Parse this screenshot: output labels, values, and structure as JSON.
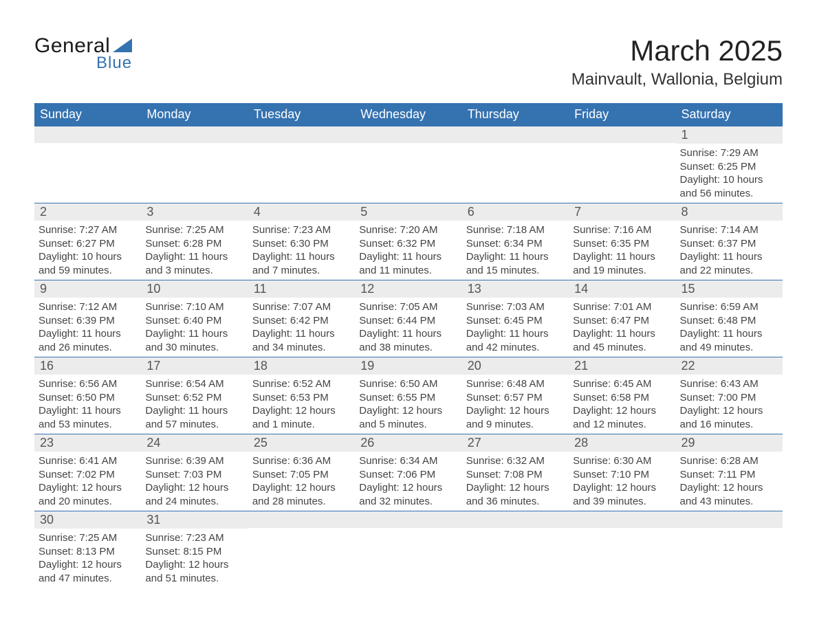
{
  "logo": {
    "text1": "General",
    "text2": "Blue",
    "triangle_color": "#3572b0"
  },
  "title": "March 2025",
  "location": "Mainvault, Wallonia, Belgium",
  "colors": {
    "header_bg": "#3572b0",
    "row_bg": "#ececec",
    "border": "#3572b0"
  },
  "day_headers": [
    "Sunday",
    "Monday",
    "Tuesday",
    "Wednesday",
    "Thursday",
    "Friday",
    "Saturday"
  ],
  "weeks": [
    [
      null,
      null,
      null,
      null,
      null,
      null,
      {
        "n": "1",
        "sunrise": "Sunrise: 7:29 AM",
        "sunset": "Sunset: 6:25 PM",
        "daylight": "Daylight: 10 hours and 56 minutes."
      }
    ],
    [
      {
        "n": "2",
        "sunrise": "Sunrise: 7:27 AM",
        "sunset": "Sunset: 6:27 PM",
        "daylight": "Daylight: 10 hours and 59 minutes."
      },
      {
        "n": "3",
        "sunrise": "Sunrise: 7:25 AM",
        "sunset": "Sunset: 6:28 PM",
        "daylight": "Daylight: 11 hours and 3 minutes."
      },
      {
        "n": "4",
        "sunrise": "Sunrise: 7:23 AM",
        "sunset": "Sunset: 6:30 PM",
        "daylight": "Daylight: 11 hours and 7 minutes."
      },
      {
        "n": "5",
        "sunrise": "Sunrise: 7:20 AM",
        "sunset": "Sunset: 6:32 PM",
        "daylight": "Daylight: 11 hours and 11 minutes."
      },
      {
        "n": "6",
        "sunrise": "Sunrise: 7:18 AM",
        "sunset": "Sunset: 6:34 PM",
        "daylight": "Daylight: 11 hours and 15 minutes."
      },
      {
        "n": "7",
        "sunrise": "Sunrise: 7:16 AM",
        "sunset": "Sunset: 6:35 PM",
        "daylight": "Daylight: 11 hours and 19 minutes."
      },
      {
        "n": "8",
        "sunrise": "Sunrise: 7:14 AM",
        "sunset": "Sunset: 6:37 PM",
        "daylight": "Daylight: 11 hours and 22 minutes."
      }
    ],
    [
      {
        "n": "9",
        "sunrise": "Sunrise: 7:12 AM",
        "sunset": "Sunset: 6:39 PM",
        "daylight": "Daylight: 11 hours and 26 minutes."
      },
      {
        "n": "10",
        "sunrise": "Sunrise: 7:10 AM",
        "sunset": "Sunset: 6:40 PM",
        "daylight": "Daylight: 11 hours and 30 minutes."
      },
      {
        "n": "11",
        "sunrise": "Sunrise: 7:07 AM",
        "sunset": "Sunset: 6:42 PM",
        "daylight": "Daylight: 11 hours and 34 minutes."
      },
      {
        "n": "12",
        "sunrise": "Sunrise: 7:05 AM",
        "sunset": "Sunset: 6:44 PM",
        "daylight": "Daylight: 11 hours and 38 minutes."
      },
      {
        "n": "13",
        "sunrise": "Sunrise: 7:03 AM",
        "sunset": "Sunset: 6:45 PM",
        "daylight": "Daylight: 11 hours and 42 minutes."
      },
      {
        "n": "14",
        "sunrise": "Sunrise: 7:01 AM",
        "sunset": "Sunset: 6:47 PM",
        "daylight": "Daylight: 11 hours and 45 minutes."
      },
      {
        "n": "15",
        "sunrise": "Sunrise: 6:59 AM",
        "sunset": "Sunset: 6:48 PM",
        "daylight": "Daylight: 11 hours and 49 minutes."
      }
    ],
    [
      {
        "n": "16",
        "sunrise": "Sunrise: 6:56 AM",
        "sunset": "Sunset: 6:50 PM",
        "daylight": "Daylight: 11 hours and 53 minutes."
      },
      {
        "n": "17",
        "sunrise": "Sunrise: 6:54 AM",
        "sunset": "Sunset: 6:52 PM",
        "daylight": "Daylight: 11 hours and 57 minutes."
      },
      {
        "n": "18",
        "sunrise": "Sunrise: 6:52 AM",
        "sunset": "Sunset: 6:53 PM",
        "daylight": "Daylight: 12 hours and 1 minute."
      },
      {
        "n": "19",
        "sunrise": "Sunrise: 6:50 AM",
        "sunset": "Sunset: 6:55 PM",
        "daylight": "Daylight: 12 hours and 5 minutes."
      },
      {
        "n": "20",
        "sunrise": "Sunrise: 6:48 AM",
        "sunset": "Sunset: 6:57 PM",
        "daylight": "Daylight: 12 hours and 9 minutes."
      },
      {
        "n": "21",
        "sunrise": "Sunrise: 6:45 AM",
        "sunset": "Sunset: 6:58 PM",
        "daylight": "Daylight: 12 hours and 12 minutes."
      },
      {
        "n": "22",
        "sunrise": "Sunrise: 6:43 AM",
        "sunset": "Sunset: 7:00 PM",
        "daylight": "Daylight: 12 hours and 16 minutes."
      }
    ],
    [
      {
        "n": "23",
        "sunrise": "Sunrise: 6:41 AM",
        "sunset": "Sunset: 7:02 PM",
        "daylight": "Daylight: 12 hours and 20 minutes."
      },
      {
        "n": "24",
        "sunrise": "Sunrise: 6:39 AM",
        "sunset": "Sunset: 7:03 PM",
        "daylight": "Daylight: 12 hours and 24 minutes."
      },
      {
        "n": "25",
        "sunrise": "Sunrise: 6:36 AM",
        "sunset": "Sunset: 7:05 PM",
        "daylight": "Daylight: 12 hours and 28 minutes."
      },
      {
        "n": "26",
        "sunrise": "Sunrise: 6:34 AM",
        "sunset": "Sunset: 7:06 PM",
        "daylight": "Daylight: 12 hours and 32 minutes."
      },
      {
        "n": "27",
        "sunrise": "Sunrise: 6:32 AM",
        "sunset": "Sunset: 7:08 PM",
        "daylight": "Daylight: 12 hours and 36 minutes."
      },
      {
        "n": "28",
        "sunrise": "Sunrise: 6:30 AM",
        "sunset": "Sunset: 7:10 PM",
        "daylight": "Daylight: 12 hours and 39 minutes."
      },
      {
        "n": "29",
        "sunrise": "Sunrise: 6:28 AM",
        "sunset": "Sunset: 7:11 PM",
        "daylight": "Daylight: 12 hours and 43 minutes."
      }
    ],
    [
      {
        "n": "30",
        "sunrise": "Sunrise: 7:25 AM",
        "sunset": "Sunset: 8:13 PM",
        "daylight": "Daylight: 12 hours and 47 minutes."
      },
      {
        "n": "31",
        "sunrise": "Sunrise: 7:23 AM",
        "sunset": "Sunset: 8:15 PM",
        "daylight": "Daylight: 12 hours and 51 minutes."
      },
      null,
      null,
      null,
      null,
      null
    ]
  ]
}
